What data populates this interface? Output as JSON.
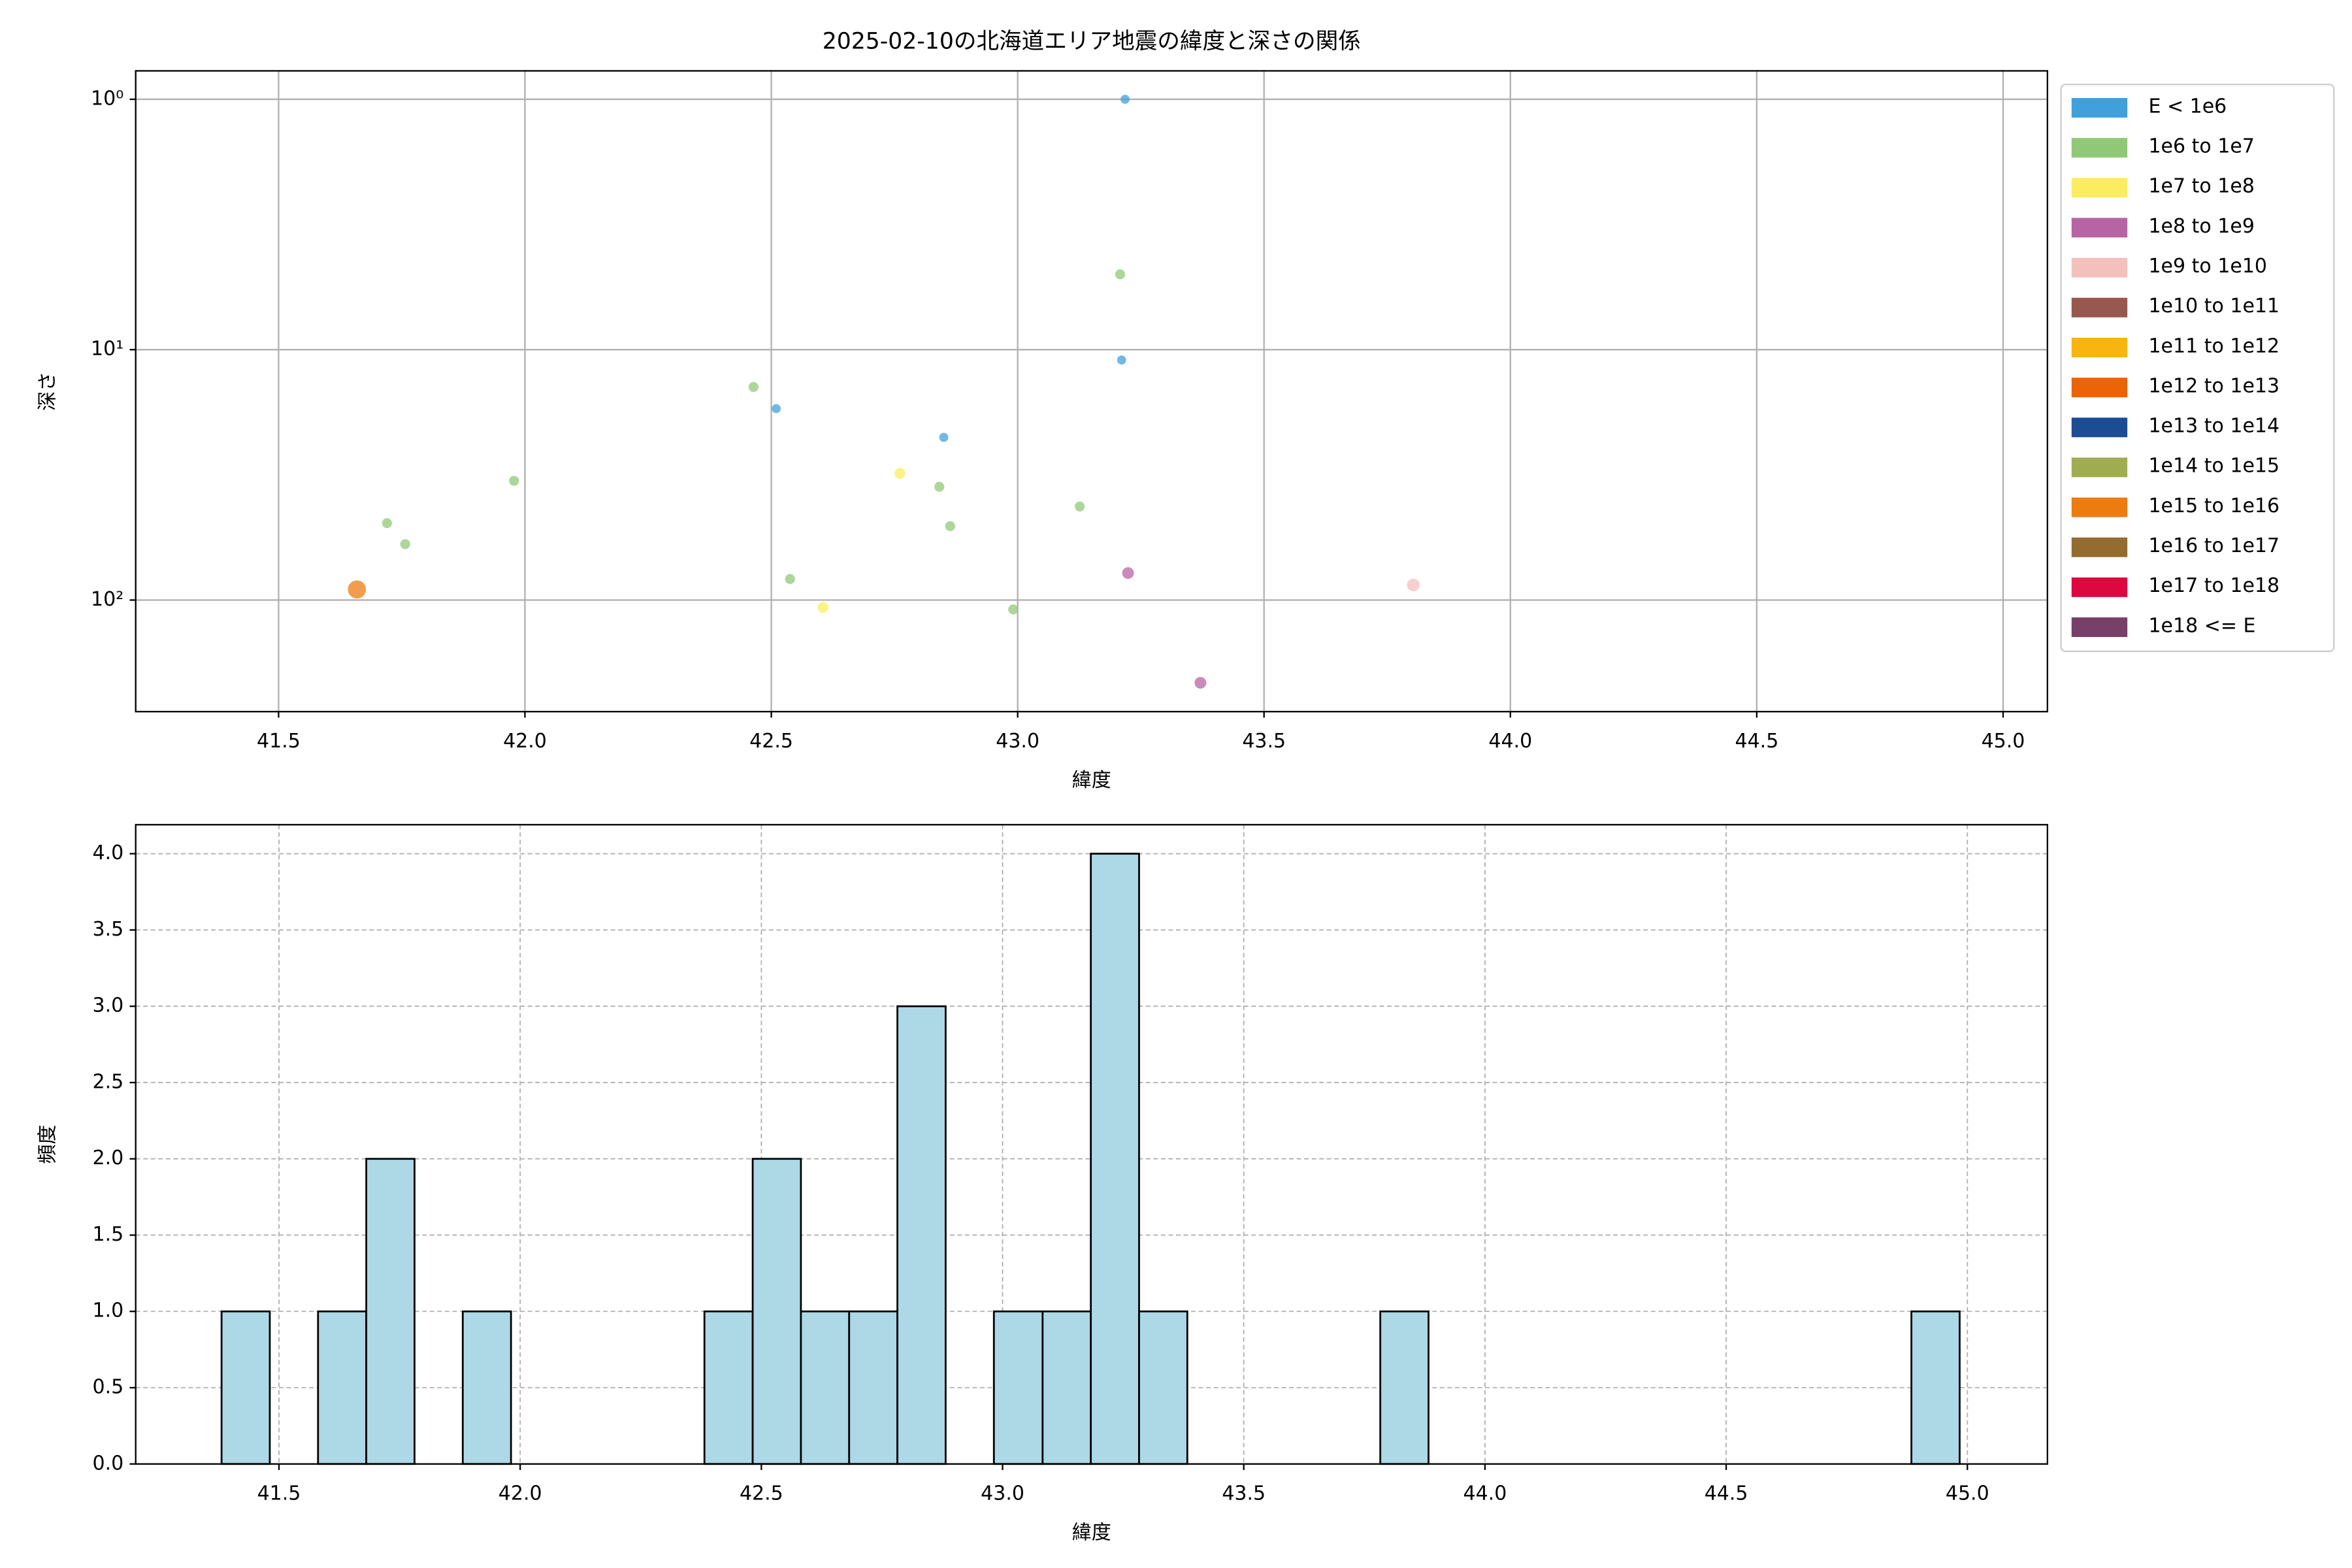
{
  "chart_data": [
    {
      "type": "scatter",
      "title": "2025-02-10の北海道エリア地震の緯度と深さの関係",
      "xlabel": "緯度",
      "ylabel": "深さ",
      "xlim": [
        41.21,
        45.09
      ],
      "xticks": [
        41.5,
        {
          "value": 42,
          "label": "42.0"
        },
        42.5,
        {
          "value": 43,
          "label": "43.0"
        },
        43.5,
        {
          "value": 44,
          "label": "44.0"
        },
        44.5,
        {
          "value": 45,
          "label": "45.0"
        }
      ],
      "ylim": [
        0.77,
        279
      ],
      "y_log": true,
      "y_inverted": true,
      "yticks": [
        {
          "value": 1,
          "label": "10⁰"
        },
        {
          "value": 10,
          "label": "10¹"
        },
        {
          "value": 100,
          "label": "10²"
        }
      ],
      "grid": true,
      "grid_style": "solid",
      "legend_loc": "outside upper right",
      "series": [
        {
          "name": "E < 1e6",
          "color": "#40a0dc",
          "x": [
            43.218,
            43.211,
            42.51,
            42.85
          ],
          "values": [
            1.0,
            11.0,
            17.2,
            22.4
          ]
        },
        {
          "name": "1e6 to 1e7",
          "color": "#90c878",
          "x": [
            43.208,
            42.464,
            41.978,
            42.841,
            43.126,
            41.72,
            42.863,
            41.757,
            42.538,
            42.991
          ],
          "values": [
            5.0,
            14.1,
            33.4,
            35.3,
            42.3,
            49.3,
            50.7,
            59.8,
            82.4,
            109
          ]
        },
        {
          "name": "1e7 to 1e8",
          "color": "#fcec60",
          "x": [
            42.761,
            42.605
          ],
          "values": [
            31.2,
            107
          ]
        },
        {
          "name": "1e8 to 1e9",
          "color": "#b864a4",
          "x": [
            43.224,
            43.371
          ],
          "values": [
            78,
            214
          ]
        },
        {
          "name": "1e9 to 1e10",
          "color": "#f4c0bc",
          "x": [
            43.803
          ],
          "values": [
            87
          ]
        },
        {
          "name": "1e10 to 1e11",
          "color": "#985850",
          "x": [],
          "values": []
        },
        {
          "name": "1e11 to 1e12",
          "color": "#f8b410",
          "x": [],
          "values": []
        },
        {
          "name": "1e12 to 1e13",
          "color": "#ec6408",
          "x": [],
          "values": []
        },
        {
          "name": "1e13 to 1e14",
          "color": "#1c4c94",
          "x": [],
          "values": []
        },
        {
          "name": "1e14 to 1e15",
          "color": "#a0ac50",
          "x": [],
          "values": []
        },
        {
          "name": "1e15 to 1e16",
          "color": "#ec7c10",
          "x": [
            41.659
          ],
          "values": [
            90.7
          ]
        },
        {
          "name": "1e16 to 1e17",
          "color": "#946c30",
          "x": [],
          "values": []
        },
        {
          "name": "1e17 to 1e18",
          "color": "#dc0840",
          "x": [],
          "values": []
        },
        {
          "name": "1e18 <= E",
          "color": "#784068",
          "x": [],
          "values": []
        }
      ]
    },
    {
      "type": "histogram",
      "xlabel": "緯度",
      "ylabel": "頻度",
      "color": "#add8e6",
      "edgecolor": "#000000",
      "xlim": [
        41.203,
        45.166
      ],
      "xticks": [
        41.5,
        {
          "value": 42,
          "label": "42.0"
        },
        42.5,
        {
          "value": 43,
          "label": "43.0"
        },
        43.5,
        {
          "value": 44,
          "label": "44.0"
        },
        44.5,
        {
          "value": 45,
          "label": "45.0"
        }
      ],
      "ylim": [
        0,
        4.19
      ],
      "yticks": [
        {
          "value": 0,
          "label": "0.0"
        },
        0.5,
        {
          "value": 1,
          "label": "1.0"
        },
        1.5,
        {
          "value": 2,
          "label": "2.0"
        },
        2.5,
        {
          "value": 3,
          "label": "3.0"
        },
        3.5,
        {
          "value": 4,
          "label": "4.0"
        }
      ],
      "grid": true,
      "grid_style": "dashed",
      "bins": [
        41.381,
        41.481,
        41.581,
        41.681,
        41.781,
        41.881,
        41.981,
        42.082,
        42.182,
        42.282,
        42.382,
        42.482,
        42.582,
        42.682,
        42.782,
        42.882,
        42.982,
        43.083,
        43.183,
        43.283,
        43.383,
        43.483,
        43.583,
        43.683,
        43.783,
        43.883,
        43.983,
        44.083,
        44.184,
        44.284,
        44.384,
        44.484,
        44.584,
        44.684,
        44.784,
        44.884,
        44.984
      ],
      "values": [
        1,
        0,
        1,
        2,
        0,
        1,
        0,
        0,
        0,
        0,
        1,
        2,
        1,
        1,
        3,
        0,
        1,
        1,
        4,
        1,
        0,
        0,
        0,
        0,
        1,
        0,
        0,
        0,
        0,
        0,
        0,
        0,
        0,
        0,
        0,
        1
      ]
    }
  ]
}
